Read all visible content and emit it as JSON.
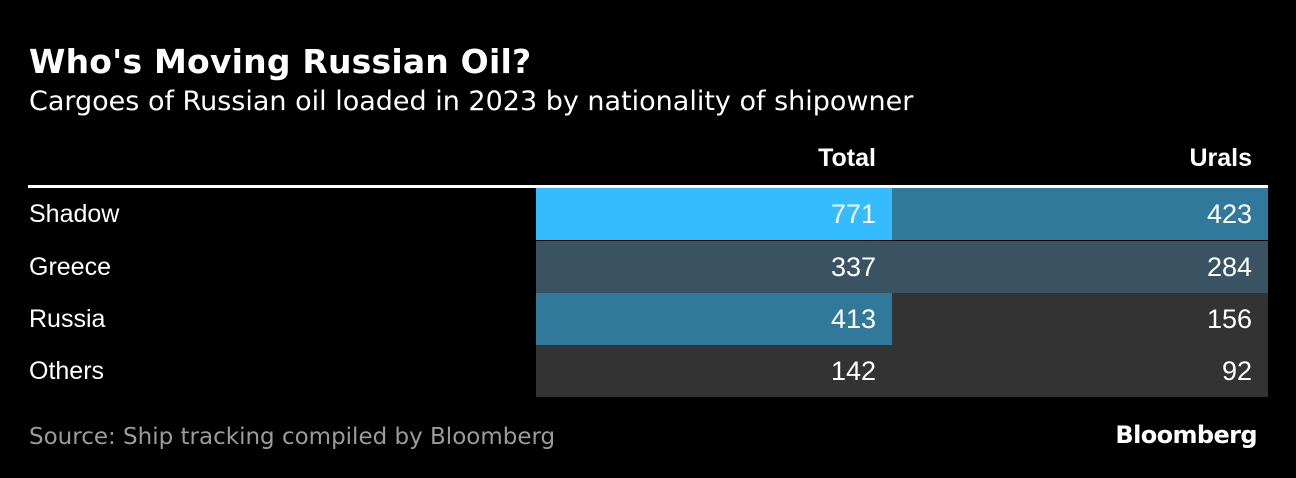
{
  "title": "Who's Moving Russian Oil?",
  "subtitle": "Cargoes of Russian oil loaded in 2023 by nationality of shipowner",
  "source": "Source: Ship tracking compiled by Bloomberg",
  "logo_text": "Bloomberg",
  "colors": {
    "background": "#000000",
    "text": "#ffffff",
    "muted_text": "#9b9b9b",
    "heat_scale": [
      "#333333",
      "#3a5362",
      "#31799b",
      "#35bcff"
    ]
  },
  "chart_data": {
    "type": "table",
    "title": "Who's Moving Russian Oil?",
    "subtitle": "Cargoes of Russian oil loaded in 2023 by nationality of shipowner",
    "columns": [
      "Total",
      "Urals"
    ],
    "rows": [
      {
        "label": "Shadow",
        "values": [
          771,
          423
        ],
        "shades": [
          "#35bcff",
          "#31799b"
        ]
      },
      {
        "label": "Greece",
        "values": [
          337,
          284
        ],
        "shades": [
          "#3a5362",
          "#3a5362"
        ]
      },
      {
        "label": "Russia",
        "values": [
          413,
          156
        ],
        "shades": [
          "#31799b",
          "#333333"
        ]
      },
      {
        "label": "Others",
        "values": [
          142,
          92
        ],
        "shades": [
          "#333333",
          "#333333"
        ]
      }
    ]
  }
}
